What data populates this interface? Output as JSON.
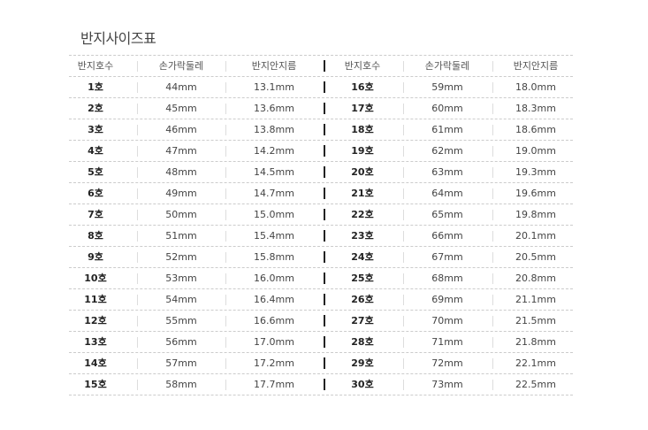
{
  "title": "반지사이즈표",
  "headers": [
    "반지호수",
    "손가락둘레",
    "반지안지름",
    "반지호수",
    "손가락둘레",
    "반지안지름"
  ],
  "rows": [
    [
      "1호",
      "44mm",
      "13.1mm",
      "16호",
      "59mm",
      "18.0mm"
    ],
    [
      "2호",
      "45mm",
      "13.6mm",
      "17호",
      "60mm",
      "18.3mm"
    ],
    [
      "3호",
      "46mm",
      "13.8mm",
      "18호",
      "61mm",
      "18.6mm"
    ],
    [
      "4호",
      "47mm",
      "14.2mm",
      "19호",
      "62mm",
      "19.0mm"
    ],
    [
      "5호",
      "48mm",
      "14.5mm",
      "20호",
      "63mm",
      "19.3mm"
    ],
    [
      "6호",
      "49mm",
      "14.7mm",
      "21호",
      "64mm",
      "19.6mm"
    ],
    [
      "7호",
      "50mm",
      "15.0mm",
      "22호",
      "65mm",
      "19.8mm"
    ],
    [
      "8호",
      "51mm",
      "15.4mm",
      "23호",
      "66mm",
      "20.1mm"
    ],
    [
      "9호",
      "52mm",
      "15.8mm",
      "24호",
      "67mm",
      "20.5mm"
    ],
    [
      "10호",
      "53mm",
      "16.0mm",
      "25호",
      "68mm",
      "20.8mm"
    ],
    [
      "11호",
      "54mm",
      "16.4mm",
      "26호",
      "69mm",
      "21.1mm"
    ],
    [
      "12호",
      "55mm",
      "16.6mm",
      "27호",
      "70mm",
      "21.5mm"
    ],
    [
      "13호",
      "56mm",
      "17.0mm",
      "28호",
      "71mm",
      "21.8mm"
    ],
    [
      "14호",
      "57mm",
      "17.2mm",
      "29호",
      "72mm",
      "22.1mm"
    ],
    [
      "15호",
      "58mm",
      "17.7mm",
      "30호",
      "73mm",
      "22.5mm"
    ]
  ]
}
